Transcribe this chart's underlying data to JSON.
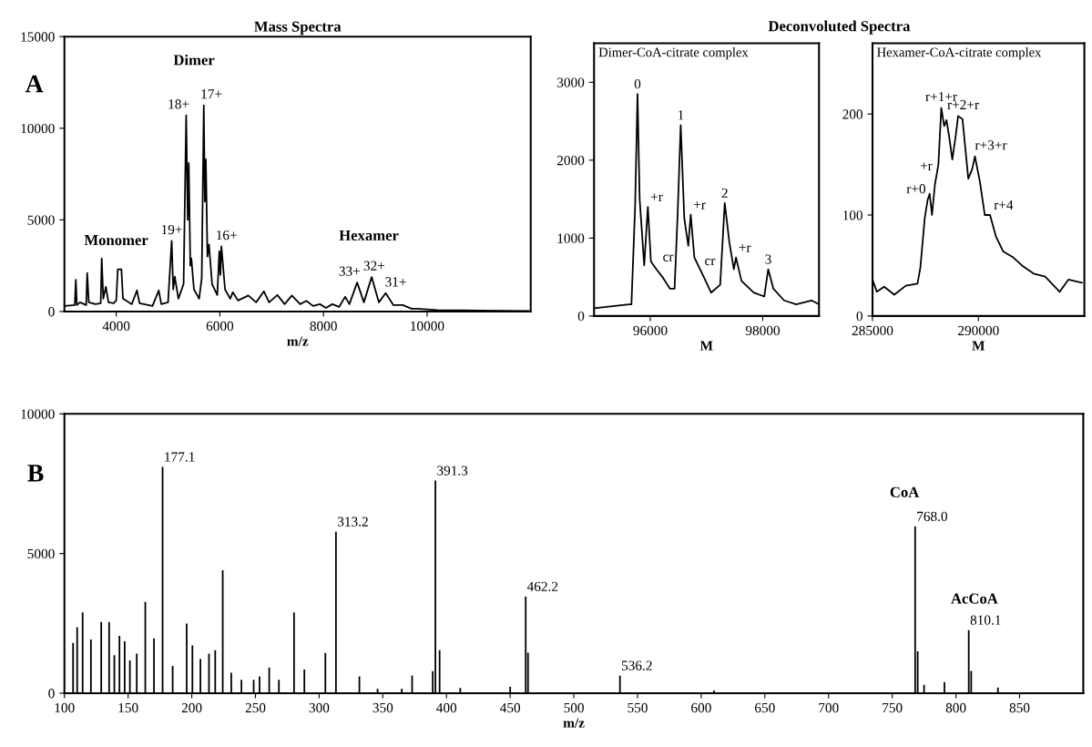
{
  "chart_data": [
    {
      "type": "line",
      "title": "Mass Spectra",
      "xlabel": "m/z",
      "color": "#000000",
      "xlim": [
        3000,
        12000
      ],
      "xticks": [
        4000,
        6000,
        8000,
        10000
      ],
      "ylim": [
        0,
        15000
      ],
      "yticks": [
        0,
        5000,
        10000,
        15000
      ],
      "x": [
        3000,
        3200,
        3220,
        3240,
        3300,
        3420,
        3440,
        3470,
        3600,
        3700,
        3720,
        3750,
        3800,
        3850,
        3950,
        4000,
        4030,
        4100,
        4130,
        4300,
        4400,
        4450,
        4700,
        4820,
        4870,
        5000,
        5070,
        5100,
        5130,
        5200,
        5300,
        5350,
        5380,
        5400,
        5430,
        5450,
        5500,
        5600,
        5650,
        5690,
        5710,
        5730,
        5760,
        5790,
        5850,
        5950,
        5990,
        6010,
        6030,
        6100,
        6200,
        6250,
        6350,
        6550,
        6700,
        6850,
        6950,
        7110,
        7250,
        7390,
        7550,
        7670,
        7800,
        7930,
        8050,
        8170,
        8300,
        8420,
        8500,
        8650,
        8780,
        8930,
        9070,
        9200,
        9350,
        9530,
        9700,
        9800,
        10200,
        11000,
        12000
      ],
      "values": [
        300,
        350,
        1730,
        350,
        500,
        350,
        2100,
        500,
        400,
        450,
        2900,
        700,
        1350,
        500,
        450,
        600,
        2300,
        2300,
        700,
        400,
        1150,
        450,
        300,
        1150,
        400,
        500,
        3850,
        1200,
        1900,
        700,
        1500,
        10700,
        5000,
        8100,
        2500,
        2900,
        1200,
        700,
        1800,
        11250,
        6000,
        8300,
        3000,
        3650,
        1500,
        900,
        3300,
        2000,
        3550,
        1200,
        700,
        1050,
        600,
        870,
        500,
        1100,
        500,
        900,
        400,
        870,
        400,
        580,
        300,
        400,
        200,
        400,
        250,
        800,
        400,
        1580,
        500,
        1880,
        500,
        1000,
        350,
        350,
        150,
        150,
        80,
        50,
        30
      ],
      "annotations": [
        "A",
        "Dimer",
        "Monomer",
        "Hexamer",
        {
          "text": "19+",
          "x": 5070,
          "y": 3850
        },
        {
          "text": "18+",
          "x": 5350,
          "y": 10700
        },
        {
          "text": "17+",
          "x": 5690,
          "y": 11250
        },
        {
          "text": "16+",
          "x": 6030,
          "y": 3550
        },
        {
          "text": "33+",
          "x": 8650,
          "y": 1580
        },
        {
          "text": "32+",
          "x": 8930,
          "y": 1880
        },
        {
          "text": "31+",
          "x": 9200,
          "y": 1000
        }
      ]
    },
    {
      "type": "line",
      "title": "Dimer-CoA-citrate complex",
      "xlabel": "M",
      "color": "#000000",
      "xlim": [
        95000,
        99000
      ],
      "xticks": [
        96000,
        98000
      ],
      "ylim": [
        0,
        3500
      ],
      "yticks": [
        0,
        1000,
        2000,
        3000
      ],
      "x": [
        95000,
        95622,
        95665,
        95730,
        95773,
        95811,
        95892,
        95957,
        96011,
        96108,
        96216,
        96351,
        96432,
        96486,
        96541,
        96605,
        96676,
        96719,
        96784,
        96919,
        97081,
        97243,
        97324,
        97405,
        97486,
        97524,
        97622,
        97838,
        98027,
        98097,
        98189,
        98378,
        98595,
        98865,
        99000
      ],
      "values": [
        100,
        150,
        150,
        1400,
        2850,
        1500,
        650,
        1400,
        700,
        600,
        500,
        350,
        350,
        1300,
        2450,
        1250,
        900,
        1300,
        750,
        550,
        300,
        400,
        1450,
        950,
        600,
        750,
        450,
        300,
        250,
        600,
        350,
        200,
        150,
        200,
        150
      ],
      "annotations": [
        "Deconvoluted Spectra",
        {
          "text": "0",
          "x": 95773,
          "y": 2850
        },
        {
          "text": "+r",
          "x": 95957,
          "y": 1400
        },
        {
          "text": "cr",
          "x": 96108,
          "y": 600
        },
        {
          "text": "1",
          "x": 96541,
          "y": 2450
        },
        {
          "text": "+r",
          "x": 96719,
          "y": 1300
        },
        {
          "text": "cr",
          "x": 96919,
          "y": 550
        },
        {
          "text": "2",
          "x": 97324,
          "y": 1450
        },
        {
          "text": "+r",
          "x": 97524,
          "y": 750
        },
        {
          "text": "3",
          "x": 98097,
          "y": 600
        }
      ]
    },
    {
      "type": "line",
      "title": "Hexamer-CoA-citrate complex",
      "xlabel": "M",
      "color": "#000000",
      "xlim": [
        285000,
        295000
      ],
      "xticks": [
        285000,
        290000
      ],
      "ylim": [
        0,
        270
      ],
      "yticks": [
        0,
        100,
        200
      ],
      "x": [
        285000,
        285205,
        285548,
        286027,
        286575,
        287123,
        287260,
        287466,
        287603,
        287699,
        287808,
        287945,
        288110,
        288247,
        288384,
        288493,
        288630,
        288767,
        288932,
        289041,
        289247,
        289521,
        289699,
        289836,
        290068,
        290301,
        290548,
        290822,
        291164,
        291644,
        292055,
        292603,
        293151,
        293836,
        294247,
        294890
      ],
      "values": [
        36,
        24,
        29,
        21,
        30,
        32,
        48,
        97,
        115,
        121,
        100,
        130,
        150,
        206,
        188,
        194,
        176,
        155,
        179,
        198,
        195,
        136,
        145,
        158,
        133,
        100,
        100,
        79,
        64,
        58,
        50,
        42,
        39,
        24,
        36,
        33
      ],
      "annotations": [
        {
          "text": "r+0",
          "x": 287699,
          "y": 121
        },
        {
          "text": "+r",
          "x": 287945,
          "y": 130
        },
        {
          "text": "r+1+r",
          "x": 288247,
          "y": 206
        },
        {
          "text": "r+2+r",
          "x": 289041,
          "y": 198
        },
        {
          "text": "r+3+r",
          "x": 289836,
          "y": 158
        },
        {
          "text": "r+4",
          "x": 290548,
          "y": 100
        }
      ]
    },
    {
      "type": "bar",
      "xlabel": "m/z",
      "color": "#000000",
      "xlim": [
        100,
        900
      ],
      "xticks": [
        100,
        150,
        200,
        250,
        300,
        350,
        400,
        450,
        500,
        550,
        600,
        650,
        700,
        750,
        800,
        850
      ],
      "ylim": [
        0,
        10000
      ],
      "yticks": [
        0,
        5000,
        10000
      ],
      "x": [
        106.8,
        110,
        114.3,
        120.8,
        128.9,
        135.1,
        139.2,
        143.2,
        147.3,
        151.4,
        156.8,
        163.5,
        170.3,
        177.1,
        185,
        196,
        200.5,
        206.8,
        213.5,
        218.4,
        224.3,
        231,
        239,
        248.6,
        253.2,
        260.8,
        268.4,
        280.3,
        288.4,
        304.9,
        313.2,
        331.6,
        345.9,
        364.9,
        373,
        389.2,
        391.3,
        394.6,
        410.8,
        450,
        462.2,
        464,
        536.2,
        610,
        768.0,
        770,
        775,
        791,
        810.1,
        812,
        833
      ],
      "values": [
        1800,
        2360,
        2890,
        1920,
        2550,
        2550,
        1360,
        2050,
        1860,
        1170,
        1420,
        3270,
        1960,
        8100,
        980,
        2490,
        1710,
        1230,
        1420,
        1540,
        4400,
        730,
        480,
        480,
        600,
        920,
        480,
        2890,
        850,
        1440,
        5780,
        600,
        160,
        160,
        630,
        790,
        7610,
        1540,
        190,
        230,
        3460,
        1450,
        630,
        100,
        5970,
        1500,
        300,
        400,
        2260,
        800,
        200
      ],
      "annotations": [
        "B",
        "CoA",
        "AcCoA",
        {
          "text": "177.1",
          "x": 177.1,
          "y": 8100
        },
        {
          "text": "313.2",
          "x": 313.2,
          "y": 5780
        },
        {
          "text": "391.3",
          "x": 391.3,
          "y": 7610
        },
        {
          "text": "462.2",
          "x": 462.2,
          "y": 3460
        },
        {
          "text": "536.2",
          "x": 536.2,
          "y": 630
        },
        {
          "text": "768.0",
          "x": 768.0,
          "y": 5970
        },
        {
          "text": "810.1",
          "x": 810.1,
          "y": 2260
        }
      ]
    }
  ]
}
